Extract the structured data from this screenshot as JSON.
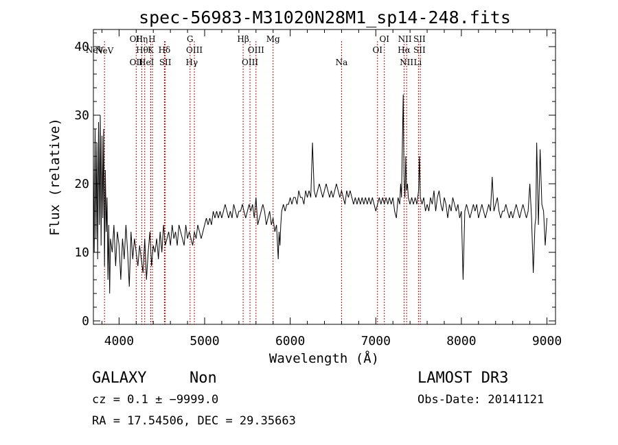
{
  "chart_data": {
    "type": "line",
    "title": "spec-56983-M31020N28M1_sp14-248.fits",
    "xlabel": "Wavelength (Å)",
    "ylabel": "Flux (relative)",
    "xlim": [
      3700,
      9100
    ],
    "ylim": [
      -0.5,
      42.5
    ],
    "xticks": [
      4000,
      5000,
      6000,
      7000,
      8000,
      9000
    ],
    "yticks": [
      0,
      10,
      20,
      30,
      40
    ],
    "grid": false,
    "line_color": "#000000",
    "marker_color": "#cc0000",
    "lines": [
      {
        "label": "NeV",
        "x": 3426,
        "row": 1
      },
      {
        "label": "NeV",
        "x": 3830,
        "row": 2
      },
      {
        "label": "OII",
        "x": 4200,
        "row": 0
      },
      {
        "label": "OII",
        "x": 4200,
        "row": 3
      },
      {
        "label": "Hη",
        "x": 4265,
        "row": 0
      },
      {
        "label": "Hθ",
        "x": 4270,
        "row": 1
      },
      {
        "label": "He",
        "x": 4300,
        "row": 3
      },
      {
        "label": "H",
        "x": 4385,
        "row": 0
      },
      {
        "label": "K",
        "x": 4370,
        "row": 1
      },
      {
        "label": "I",
        "x": 4390,
        "row": 3
      },
      {
        "label": "Hδ",
        "x": 4530,
        "row": 1
      },
      {
        "label": "SII",
        "x": 4540,
        "row": 3
      },
      {
        "label": "G",
        "x": 4830,
        "row": 0
      },
      {
        "label": "OIII",
        "x": 4880,
        "row": 1
      },
      {
        "label": "Hγ",
        "x": 4850,
        "row": 3
      },
      {
        "label": "Hβ",
        "x": 5450,
        "row": 0
      },
      {
        "label": "OIII",
        "x": 5600,
        "row": 1
      },
      {
        "label": "OIII",
        "x": 5530,
        "row": 3
      },
      {
        "label": "Mg",
        "x": 5800,
        "row": 0
      },
      {
        "label": "Na",
        "x": 6600,
        "row": 3
      },
      {
        "label": "OI",
        "x": 7100,
        "row": 0
      },
      {
        "label": "OI",
        "x": 7020,
        "row": 1
      },
      {
        "label": "NII",
        "x": 7340,
        "row": 0
      },
      {
        "label": "Hα",
        "x": 7330,
        "row": 1
      },
      {
        "label": "NII",
        "x": 7360,
        "row": 3
      },
      {
        "label": "SII",
        "x": 7510,
        "row": 0
      },
      {
        "label": "SII",
        "x": 7510,
        "row": 1
      },
      {
        "label": "Li",
        "x": 7490,
        "row": 3
      }
    ],
    "marker_x": [
      3830,
      4200,
      4265,
      4300,
      4370,
      4390,
      4530,
      4540,
      4830,
      4880,
      5450,
      5530,
      5600,
      5800,
      6600,
      7020,
      7100,
      7330,
      7360,
      7500,
      7520
    ],
    "series": [
      {
        "x": [
          3700,
          3710,
          3720,
          3730,
          3740,
          3750,
          3760,
          3770,
          3780,
          3790,
          3800,
          3810,
          3820,
          3830,
          3840,
          3850,
          3860,
          3870,
          3880,
          3890,
          3900,
          3920,
          3940,
          3960,
          3980,
          4000,
          4020,
          4040,
          4060,
          4080,
          4100,
          4120,
          4140,
          4160,
          4180,
          4200,
          4220,
          4240,
          4260,
          4280,
          4300,
          4320,
          4340,
          4360,
          4380,
          4400,
          4420,
          4440,
          4460,
          4480,
          4500,
          4520,
          4540,
          4560,
          4580,
          4600,
          4620,
          4640,
          4660,
          4680,
          4700,
          4720,
          4740,
          4760,
          4780,
          4800,
          4820,
          4840,
          4860,
          4880,
          4900,
          4920,
          4940,
          4960,
          4980,
          5000,
          5020,
          5040,
          5060,
          5080,
          5100,
          5120,
          5140,
          5160,
          5180,
          5200,
          5220,
          5240,
          5260,
          5280,
          5300,
          5320,
          5340,
          5360,
          5380,
          5400,
          5420,
          5440,
          5460,
          5480,
          5500,
          5520,
          5540,
          5560,
          5580,
          5600,
          5620,
          5640,
          5660,
          5680,
          5700,
          5720,
          5740,
          5760,
          5780,
          5800,
          5820,
          5840,
          5860,
          5870,
          5880,
          5890,
          5900,
          5920,
          5940,
          5960,
          5980,
          6000,
          6020,
          6040,
          6060,
          6080,
          6100,
          6120,
          6140,
          6160,
          6180,
          6200,
          6220,
          6240,
          6260,
          6280,
          6300,
          6320,
          6340,
          6360,
          6380,
          6400,
          6420,
          6440,
          6460,
          6480,
          6500,
          6520,
          6540,
          6560,
          6580,
          6600,
          6620,
          6640,
          6660,
          6680,
          6700,
          6720,
          6740,
          6760,
          6780,
          6800,
          6820,
          6840,
          6860,
          6880,
          6900,
          6920,
          6940,
          6960,
          6980,
          7000,
          7020,
          7040,
          7060,
          7080,
          7100,
          7120,
          7140,
          7160,
          7180,
          7200,
          7220,
          7240,
          7260,
          7280,
          7290,
          7300,
          7320,
          7330,
          7340,
          7350,
          7360,
          7370,
          7380,
          7400,
          7420,
          7440,
          7460,
          7480,
          7500,
          7510,
          7520,
          7540,
          7560,
          7580,
          7600,
          7620,
          7640,
          7660,
          7680,
          7700,
          7720,
          7740,
          7760,
          7780,
          7800,
          7820,
          7840,
          7860,
          7880,
          7900,
          7920,
          7940,
          7960,
          7980,
          8000,
          8020,
          8040,
          8060,
          8080,
          8100,
          8120,
          8140,
          8160,
          8180,
          8200,
          8220,
          8240,
          8260,
          8280,
          8300,
          8320,
          8340,
          8360,
          8380,
          8400,
          8420,
          8440,
          8460,
          8480,
          8500,
          8520,
          8540,
          8560,
          8580,
          8600,
          8620,
          8640,
          8660,
          8680,
          8700,
          8720,
          8740,
          8760,
          8780,
          8800,
          8820,
          8840,
          8860,
          8870,
          8880,
          8900,
          8920,
          8940,
          8960,
          8980,
          9000
        ],
        "y": [
          24,
          10,
          28,
          12,
          26,
          9,
          29,
          14,
          30,
          11,
          27,
          15,
          28,
          8,
          22,
          13,
          18,
          6,
          14,
          4,
          12,
          10,
          14,
          8,
          13,
          11,
          6,
          12,
          9,
          14,
          10,
          5,
          13,
          9,
          12,
          10,
          8,
          11,
          9,
          7,
          12,
          6,
          10,
          13,
          8,
          11,
          10,
          12,
          9,
          13,
          10,
          14,
          11,
          12,
          13,
          11,
          14,
          12,
          13,
          11,
          14,
          13,
          12,
          11,
          14,
          12,
          13,
          12,
          11,
          13,
          12,
          14,
          13,
          12,
          13,
          14,
          15,
          14,
          15,
          14,
          16,
          15,
          16,
          15,
          16,
          15,
          16,
          17,
          16,
          15,
          16,
          15,
          17,
          16,
          15,
          16,
          16,
          17,
          16,
          15,
          16,
          17,
          16,
          17,
          15,
          18,
          14,
          15,
          16,
          17,
          16,
          14,
          15,
          16,
          14,
          15,
          13,
          14,
          9,
          13,
          11,
          14,
          16,
          17,
          16,
          17,
          17,
          18,
          17,
          18,
          18,
          17,
          19,
          18,
          18,
          17,
          19,
          18,
          19,
          18,
          26,
          19,
          18,
          19,
          20,
          19,
          18,
          19,
          20,
          19,
          18,
          19,
          18,
          19,
          20,
          19,
          18,
          19,
          18,
          17,
          19,
          18,
          19,
          18,
          17,
          18,
          17,
          18,
          17,
          18,
          17,
          18,
          17,
          18,
          17,
          18,
          17,
          16,
          17,
          18,
          17,
          18,
          17,
          18,
          17,
          18,
          17,
          18,
          16,
          15,
          18,
          17,
          20,
          18,
          33,
          21,
          18,
          24,
          19,
          20,
          18,
          17,
          18,
          17,
          18,
          17,
          19,
          24,
          18,
          17,
          18,
          16,
          17,
          16,
          18,
          17,
          19,
          16,
          18,
          19,
          17,
          16,
          18,
          17,
          15,
          17,
          16,
          18,
          17,
          16,
          17,
          15,
          16,
          6,
          16,
          17,
          16,
          15,
          16,
          17,
          16,
          17,
          15,
          16,
          17,
          16,
          15,
          16,
          17,
          16,
          21,
          16,
          17,
          18,
          16,
          15,
          16,
          16,
          17,
          16,
          15,
          16,
          15,
          16,
          17,
          16,
          15,
          16,
          17,
          16,
          15,
          16,
          20,
          15,
          7,
          14,
          15,
          26,
          14,
          25,
          17,
          16,
          11,
          15
        ]
      }
    ]
  },
  "footer": {
    "object_class": "GALAXY",
    "subclass": "Non",
    "cz": "cz = 0.1 ± −9999.0",
    "coords": "RA =  17.54506, DEC =  29.35663",
    "survey": "LAMOST DR3",
    "obs_date": "Obs-Date: 20141121"
  }
}
